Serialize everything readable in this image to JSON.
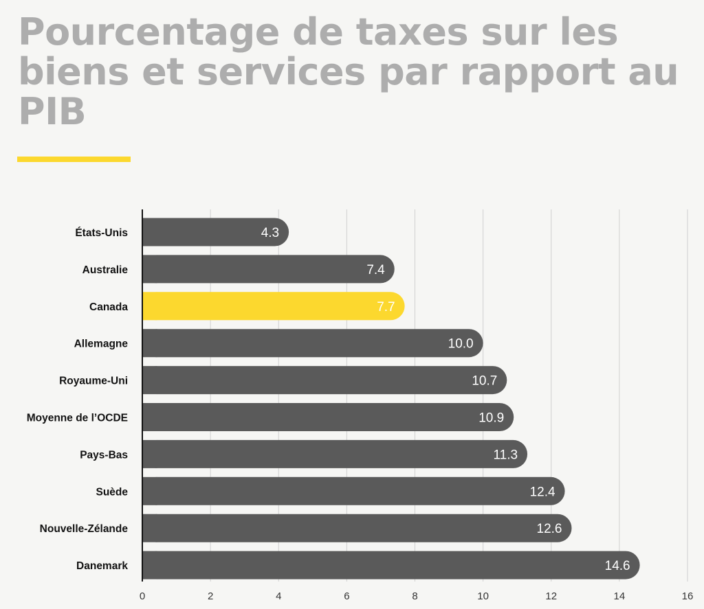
{
  "title": "Pourcentage de taxes sur les biens et services par rapport au PIB",
  "colors": {
    "background": "#f6f6f4",
    "title": "#adadad",
    "accent": "#fcd82e",
    "bar": "#5a5a5a",
    "highlight": "#fcd82e",
    "grid": "#cfcfcf",
    "axis": "#111111"
  },
  "chart_data": {
    "type": "bar",
    "orientation": "horizontal",
    "categories": [
      "États-Unis",
      "Australie",
      "Canada",
      "Allemagne",
      "Royaume-Uni",
      "Moyenne de l’OCDE",
      "Pays-Bas",
      "Suède",
      "Nouvelle-Zélande",
      "Danemark"
    ],
    "values": [
      4.3,
      7.4,
      7.7,
      10.0,
      10.7,
      10.9,
      11.3,
      12.4,
      12.6,
      14.6
    ],
    "value_labels": [
      "4.3",
      "7.4",
      "7.7",
      "10.0",
      "10.7",
      "10.9",
      "11.3",
      "12.4",
      "12.6",
      "14.6"
    ],
    "highlight": "Canada",
    "xlim": [
      0,
      16
    ],
    "xticks": [
      0,
      2,
      4,
      6,
      8,
      10,
      12,
      14,
      16
    ],
    "grid": "vertical",
    "xlabel": "",
    "ylabel": ""
  }
}
